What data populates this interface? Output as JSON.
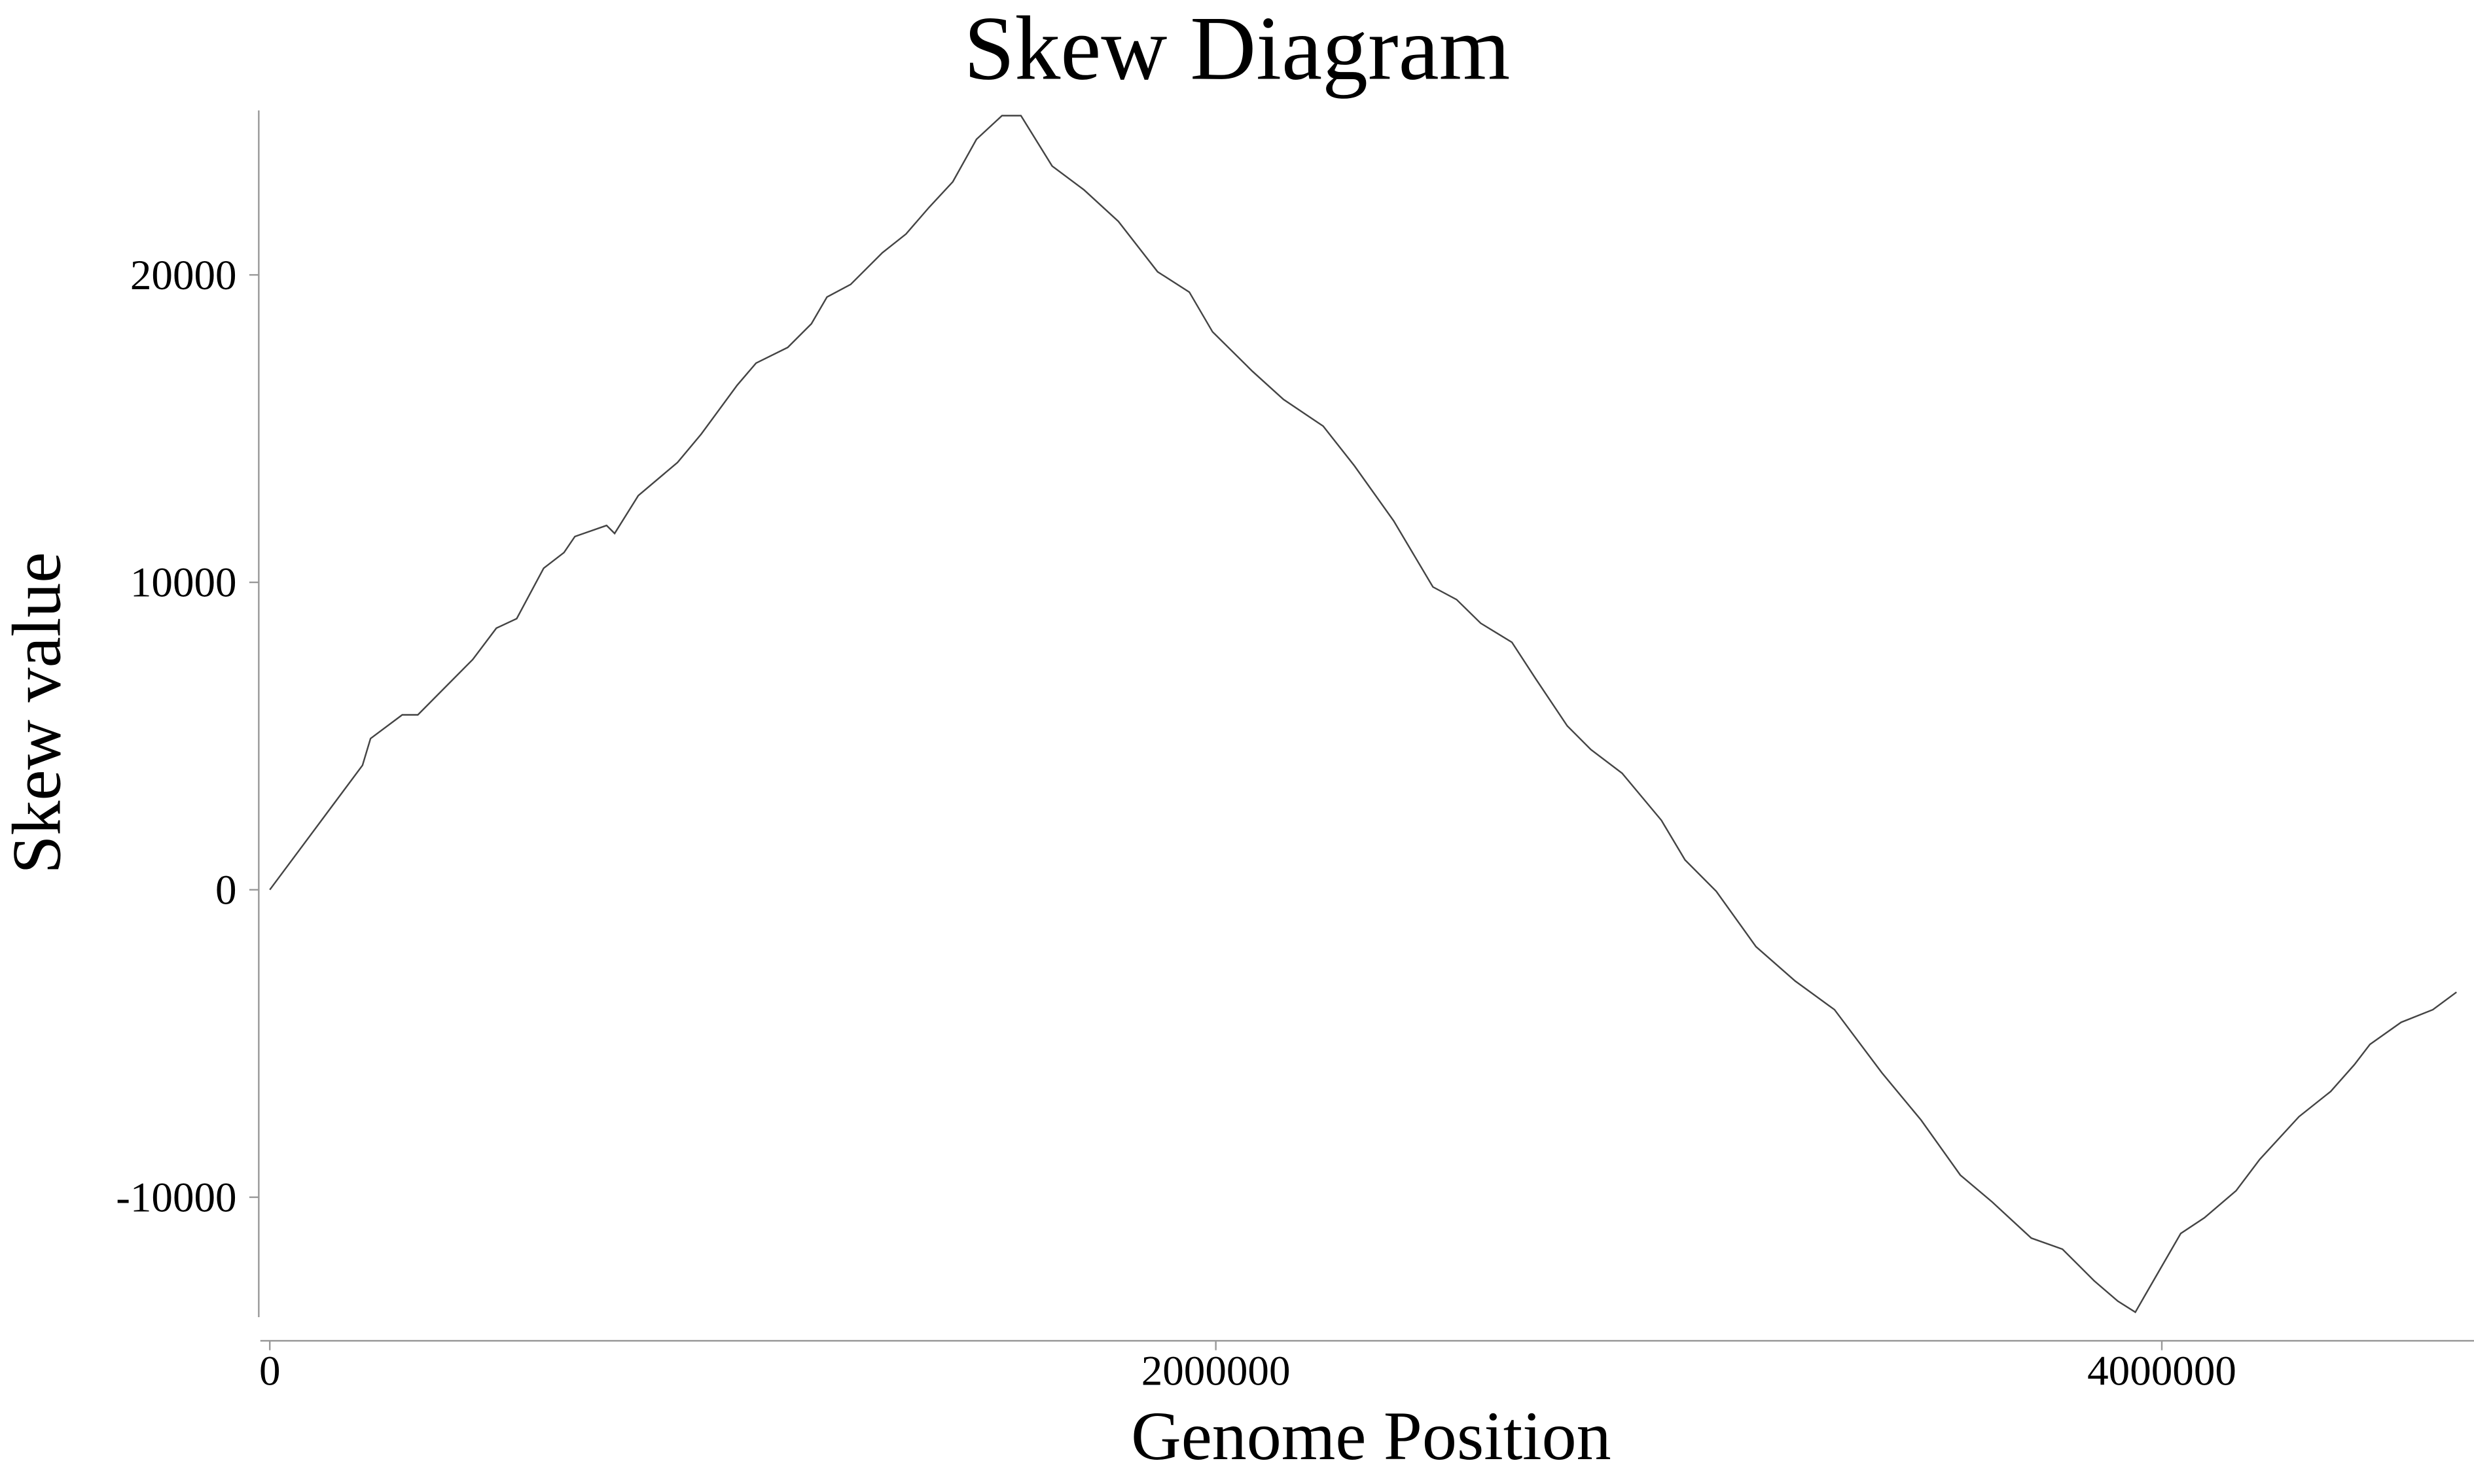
{
  "chart_data": {
    "type": "line",
    "title": "Skew Diagram",
    "xlabel": "Genome Position",
    "ylabel": "Skew value",
    "x": [
      0,
      196000,
      213000,
      280000,
      313000,
      429000,
      479000,
      522000,
      579000,
      622000,
      645000,
      712000,
      729000,
      779000,
      862000,
      912000,
      988000,
      1028000,
      1095000,
      1145000,
      1178000,
      1228000,
      1295000,
      1345000,
      1394000,
      1444000,
      1494000,
      1548000,
      1588000,
      1654000,
      1721000,
      1794000,
      1877000,
      1944000,
      1993000,
      2077000,
      2143000,
      2227000,
      2293000,
      2376000,
      2459000,
      2509000,
      2560000,
      2626000,
      2676000,
      2743000,
      2793000,
      2859000,
      2942000,
      2992000,
      3058000,
      3142000,
      3225000,
      3308000,
      3408000,
      3491000,
      3574000,
      3641000,
      3724000,
      3790000,
      3857000,
      3907000,
      3944000,
      3963000,
      4040000,
      4090000,
      4157000,
      4207000,
      4290000,
      4357000,
      4407000,
      4440000,
      4506000,
      4573000,
      4623000
    ],
    "series": [
      {
        "name": "Skew",
        "color": "#444444",
        "values": [
          0,
          4050,
          4920,
          5690,
          5690,
          7490,
          8510,
          8820,
          10460,
          10970,
          11490,
          11850,
          11590,
          12820,
          13900,
          14820,
          16410,
          17130,
          17640,
          18410,
          19280,
          19690,
          20720,
          21330,
          22200,
          23030,
          24410,
          25180,
          25180,
          23540,
          22770,
          21740,
          20100,
          19440,
          18150,
          16870,
          15950,
          15080,
          13790,
          12000,
          9850,
          9440,
          8670,
          8050,
          6870,
          5330,
          4560,
          3790,
          2260,
          970,
          -50,
          -1850,
          -2970,
          -3900,
          -5950,
          -7490,
          -9280,
          -10150,
          -11330,
          -11690,
          -12720,
          -13380,
          -13740,
          -13230,
          -11180,
          -10670,
          -9790,
          -8770,
          -7380,
          -6560,
          -5690,
          -5030,
          -4310,
          -3900,
          -3330
        ]
      }
    ],
    "xlim": [
      -20000,
      4660000
    ],
    "xticks": [
      0,
      2000000,
      4000000
    ],
    "ylim": [
      -13900,
      25350
    ],
    "yticks": [
      -10000,
      0,
      10000,
      20000
    ]
  }
}
